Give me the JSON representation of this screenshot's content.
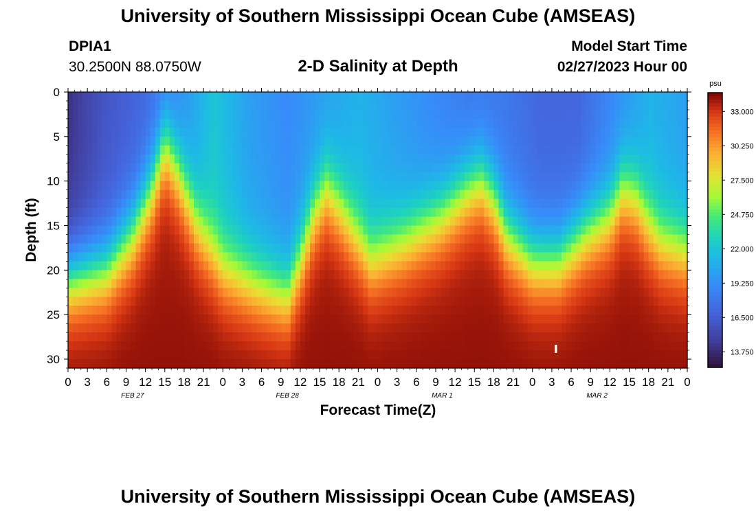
{
  "header": {
    "title": "University of Southern Mississippi Ocean Cube (AMSEAS)",
    "station_id": "DPIA1",
    "station_coords": "30.2500N  88.0750W",
    "subtitle": "2-D Salinity at Depth",
    "start_label": "Model Start Time",
    "start_value": "02/27/2023 Hour 00"
  },
  "footer": {
    "title": "University of Southern Mississippi Ocean Cube (AMSEAS)"
  },
  "chart_data": {
    "type": "heatmap",
    "title": "2-D Salinity at Depth",
    "xlabel": "Forecast Time(Z)",
    "ylabel": "Depth (ft)",
    "x_range_hours": [
      0,
      96
    ],
    "x_tick_step_hours": 3,
    "x_tick_labels": [
      "0",
      "3",
      "6",
      "9",
      "12",
      "15",
      "18",
      "21",
      "0",
      "3",
      "6",
      "9",
      "12",
      "15",
      "18",
      "21",
      "0",
      "3",
      "6",
      "9",
      "12",
      "15",
      "18",
      "21",
      "0",
      "3",
      "6",
      "9",
      "12",
      "15",
      "18",
      "21",
      "0"
    ],
    "date_labels": [
      {
        "label": "FEB 27",
        "hour": 10
      },
      {
        "label": "FEB 28",
        "hour": 34
      },
      {
        "label": "MAR 1",
        "hour": 58
      },
      {
        "label": "MAR 2",
        "hour": 82
      }
    ],
    "ylim": [
      0,
      31
    ],
    "y_ticks": [
      0,
      5,
      10,
      15,
      20,
      25,
      30
    ],
    "y_tick_labels": [
      "0",
      "5",
      "10",
      "15",
      "20",
      "25",
      "30"
    ],
    "colorbar": {
      "unit": "psu",
      "range": [
        12.5,
        34.5
      ],
      "ticks": [
        33.0,
        30.25,
        27.5,
        24.75,
        22.0,
        19.25,
        16.5,
        13.75
      ],
      "tick_labels": [
        "33.000",
        "30.250",
        "27.500",
        "24.750",
        "22.000",
        "19.250",
        "16.500",
        "13.750"
      ]
    },
    "halocline_depth_ft": {
      "hours": [
        0,
        6,
        10,
        13,
        15,
        17,
        20,
        24,
        30,
        34,
        36,
        38,
        40,
        42,
        47,
        52,
        58,
        62,
        64,
        66,
        68,
        72,
        76,
        80,
        84,
        86,
        88,
        90,
        92,
        96
      ],
      "depths": [
        21,
        20,
        16,
        11,
        6,
        9,
        15,
        20,
        22,
        23,
        19,
        14,
        11,
        13,
        19,
        17,
        14,
        11,
        10,
        12,
        16,
        19,
        19,
        16,
        14,
        11,
        12,
        15,
        17,
        18
      ]
    },
    "surface_salinity_psu": [
      14,
      16,
      17,
      19,
      22,
      20,
      19,
      20,
      21,
      20,
      19,
      18,
      18,
      17,
      17,
      19,
      21,
      20
    ],
    "bottom_salinity_psu": 33.5
  }
}
